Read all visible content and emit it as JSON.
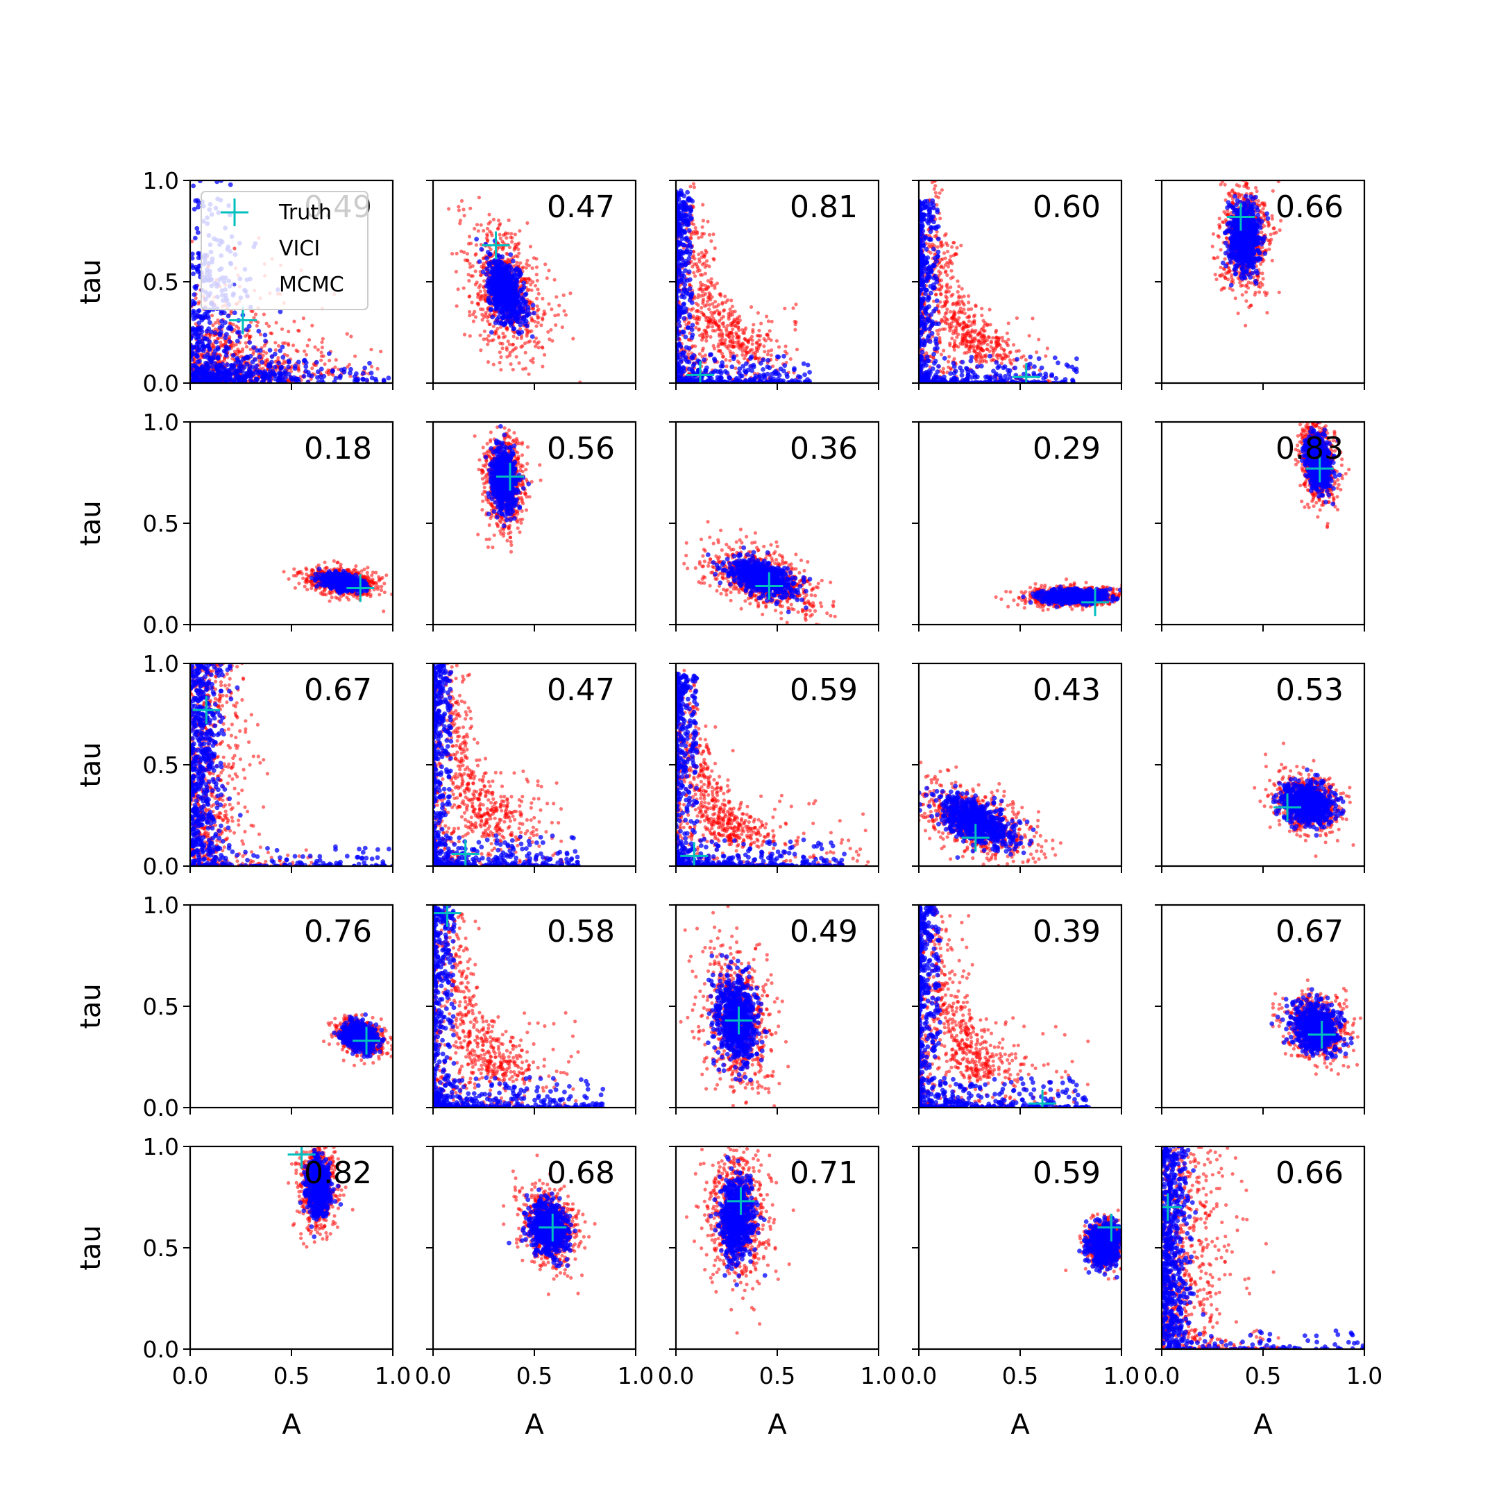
{
  "chart_data": {
    "type": "scatter",
    "layout": {
      "rows": 5,
      "cols": 5
    },
    "xlabel": "A",
    "ylabel": "tau",
    "xlim": [
      0,
      1
    ],
    "ylim": [
      0,
      1
    ],
    "xticks": [
      "0.0",
      "0.5",
      "1.0"
    ],
    "yticks": [
      "0.0",
      "0.5",
      "1.0"
    ],
    "grid": false,
    "legend": {
      "placement": "top-left of first panel",
      "entries": [
        {
          "name": "Truth",
          "marker": "+",
          "color": "#00bfbf"
        },
        {
          "name": "VICI",
          "marker": "dot",
          "color": "#ff0000"
        },
        {
          "name": "MCMC",
          "marker": "dot",
          "color": "#0000ff"
        }
      ]
    },
    "colors": {
      "truth": "#00bfbf",
      "vici": "#ff0000",
      "mcmc": "#0000ff"
    },
    "panels": [
      {
        "score": "0.49",
        "truth": [
          0.26,
          0.31
        ],
        "shape": "L",
        "cx": 0.0,
        "cy": 0.0,
        "lx": 0.45,
        "ly": 0.3,
        "mx": 0.85,
        "my": 0.85
      },
      {
        "score": "0.47",
        "truth": [
          0.31,
          0.68
        ],
        "shape": "blob",
        "cx": 0.36,
        "cy": 0.45,
        "sx": 0.1,
        "sy": 0.17,
        "rho": -0.4,
        "mscale": 0.45
      },
      {
        "score": "0.81",
        "truth": [
          0.12,
          0.04
        ],
        "shape": "hyper",
        "lx": 0.5,
        "ly": 0.8,
        "mx": 0.55,
        "my": 0.95
      },
      {
        "score": "0.60",
        "truth": [
          0.53,
          0.03
        ],
        "shape": "hyper",
        "lx": 0.55,
        "ly": 0.75,
        "mx": 0.65,
        "my": 0.9
      },
      {
        "score": "0.66",
        "truth": [
          0.39,
          0.82
        ],
        "shape": "blob",
        "cx": 0.41,
        "cy": 0.72,
        "sx": 0.06,
        "sy": 0.14,
        "rho": 0.0,
        "mscale": 0.6
      },
      {
        "score": "0.18",
        "truth": [
          0.84,
          0.18
        ],
        "shape": "blob",
        "cx": 0.75,
        "cy": 0.21,
        "sx": 0.09,
        "sy": 0.035,
        "rho": -0.3,
        "mscale": 0.55
      },
      {
        "score": "0.56",
        "truth": [
          0.38,
          0.73
        ],
        "shape": "blob",
        "cx": 0.35,
        "cy": 0.71,
        "sx": 0.05,
        "sy": 0.12,
        "rho": -0.1,
        "mscale": 0.6
      },
      {
        "score": "0.36",
        "truth": [
          0.46,
          0.19
        ],
        "shape": "blob",
        "cx": 0.42,
        "cy": 0.23,
        "sx": 0.14,
        "sy": 0.08,
        "rho": -0.45,
        "mscale": 0.55
      },
      {
        "score": "0.29",
        "truth": [
          0.87,
          0.11
        ],
        "shape": "blob",
        "cx": 0.76,
        "cy": 0.14,
        "sx": 0.12,
        "sy": 0.025,
        "rho": 0.0,
        "mscale": 0.65
      },
      {
        "score": "0.83",
        "truth": [
          0.78,
          0.77
        ],
        "shape": "blob",
        "cx": 0.77,
        "cy": 0.8,
        "sx": 0.045,
        "sy": 0.1,
        "rho": -0.3,
        "mscale": 0.65
      },
      {
        "score": "0.67",
        "truth": [
          0.08,
          0.77
        ],
        "shape": "band",
        "lx": 0.28,
        "ly": 1.0,
        "mx": 0.18,
        "my": 1.0
      },
      {
        "score": "0.47",
        "truth": [
          0.16,
          0.06
        ],
        "shape": "hyper",
        "lx": 0.55,
        "ly": 0.95,
        "mx": 0.6,
        "my": 1.0
      },
      {
        "score": "0.59",
        "truth": [
          0.09,
          0.05
        ],
        "shape": "hyper",
        "lx": 0.8,
        "ly": 0.7,
        "mx": 0.7,
        "my": 0.95
      },
      {
        "score": "0.43",
        "truth": [
          0.28,
          0.14
        ],
        "shape": "blob",
        "cx": 0.28,
        "cy": 0.22,
        "sx": 0.15,
        "sy": 0.1,
        "rho": -0.55,
        "mscale": 0.6
      },
      {
        "score": "0.53",
        "truth": [
          0.62,
          0.29
        ],
        "shape": "blob",
        "cx": 0.72,
        "cy": 0.31,
        "sx": 0.08,
        "sy": 0.07,
        "rho": -0.2,
        "mscale": 0.75
      },
      {
        "score": "0.76",
        "truth": [
          0.87,
          0.33
        ],
        "shape": "blob",
        "cx": 0.84,
        "cy": 0.35,
        "sx": 0.055,
        "sy": 0.045,
        "rho": -0.3,
        "mscale": 0.7
      },
      {
        "score": "0.58",
        "truth": [
          0.07,
          0.96
        ],
        "shape": "hyper",
        "lx": 0.6,
        "ly": 0.95,
        "mx": 0.7,
        "my": 1.0
      },
      {
        "score": "0.49",
        "truth": [
          0.31,
          0.43
        ],
        "shape": "blob",
        "cx": 0.3,
        "cy": 0.43,
        "sx": 0.09,
        "sy": 0.19,
        "rho": -0.2,
        "mscale": 0.55
      },
      {
        "score": "0.39",
        "truth": [
          0.61,
          0.02
        ],
        "shape": "hyper",
        "lx": 0.7,
        "ly": 0.95,
        "mx": 0.7,
        "my": 1.0
      },
      {
        "score": "0.67",
        "truth": [
          0.79,
          0.36
        ],
        "shape": "blob",
        "cx": 0.76,
        "cy": 0.4,
        "sx": 0.075,
        "sy": 0.08,
        "rho": -0.2,
        "mscale": 0.75
      },
      {
        "score": "0.82",
        "truth": [
          0.55,
          0.96
        ],
        "shape": "blob",
        "cx": 0.63,
        "cy": 0.8,
        "sx": 0.045,
        "sy": 0.1,
        "rho": 0.0,
        "mscale": 0.65
      },
      {
        "score": "0.68",
        "truth": [
          0.59,
          0.6
        ],
        "shape": "blob",
        "cx": 0.57,
        "cy": 0.6,
        "sx": 0.07,
        "sy": 0.1,
        "rho": -0.2,
        "mscale": 0.65
      },
      {
        "score": "0.71",
        "truth": [
          0.32,
          0.73
        ],
        "shape": "blob",
        "cx": 0.3,
        "cy": 0.65,
        "sx": 0.07,
        "sy": 0.17,
        "rho": 0.0,
        "mscale": 0.6
      },
      {
        "score": "0.59",
        "truth": [
          0.95,
          0.6
        ],
        "shape": "blob",
        "cx": 0.92,
        "cy": 0.52,
        "sx": 0.045,
        "sy": 0.055,
        "rho": 0.0,
        "mscale": 0.9
      },
      {
        "score": "0.66",
        "truth": [
          0.03,
          0.7
        ],
        "shape": "band",
        "lx": 0.33,
        "ly": 1.0,
        "mx": 0.14,
        "my": 1.0
      }
    ]
  }
}
